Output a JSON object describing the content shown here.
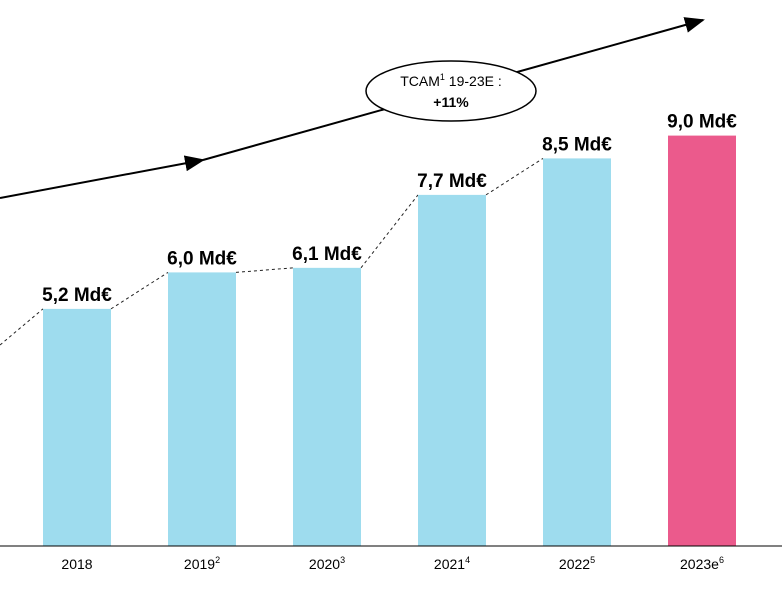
{
  "chart_data": {
    "type": "bar",
    "categories": [
      {
        "label": "2018",
        "sup": ""
      },
      {
        "label": "2019",
        "sup": "2"
      },
      {
        "label": "2020",
        "sup": "3"
      },
      {
        "label": "2021",
        "sup": "4"
      },
      {
        "label": "2022",
        "sup": "5"
      },
      {
        "label": "2023e",
        "sup": "6"
      }
    ],
    "values": [
      5.2,
      6.0,
      6.1,
      7.7,
      8.5,
      9.0
    ],
    "value_labels": [
      "5,2 Md€",
      "6,0 Md€",
      "6,1 Md€",
      "7,7 Md€",
      "8,5 Md€",
      "9,0 Md€"
    ],
    "colors": [
      "#9EDCEE",
      "#9EDCEE",
      "#9EDCEE",
      "#9EDCEE",
      "#9EDCEE",
      "#EB5A8C"
    ],
    "ylim": [
      0,
      9.0
    ],
    "grid": false,
    "legend": "none",
    "annotation": {
      "line1_main": "TCAM",
      "line1_sup": "1",
      "line1_rest": " 19-23E :",
      "line2": "+11%"
    }
  }
}
